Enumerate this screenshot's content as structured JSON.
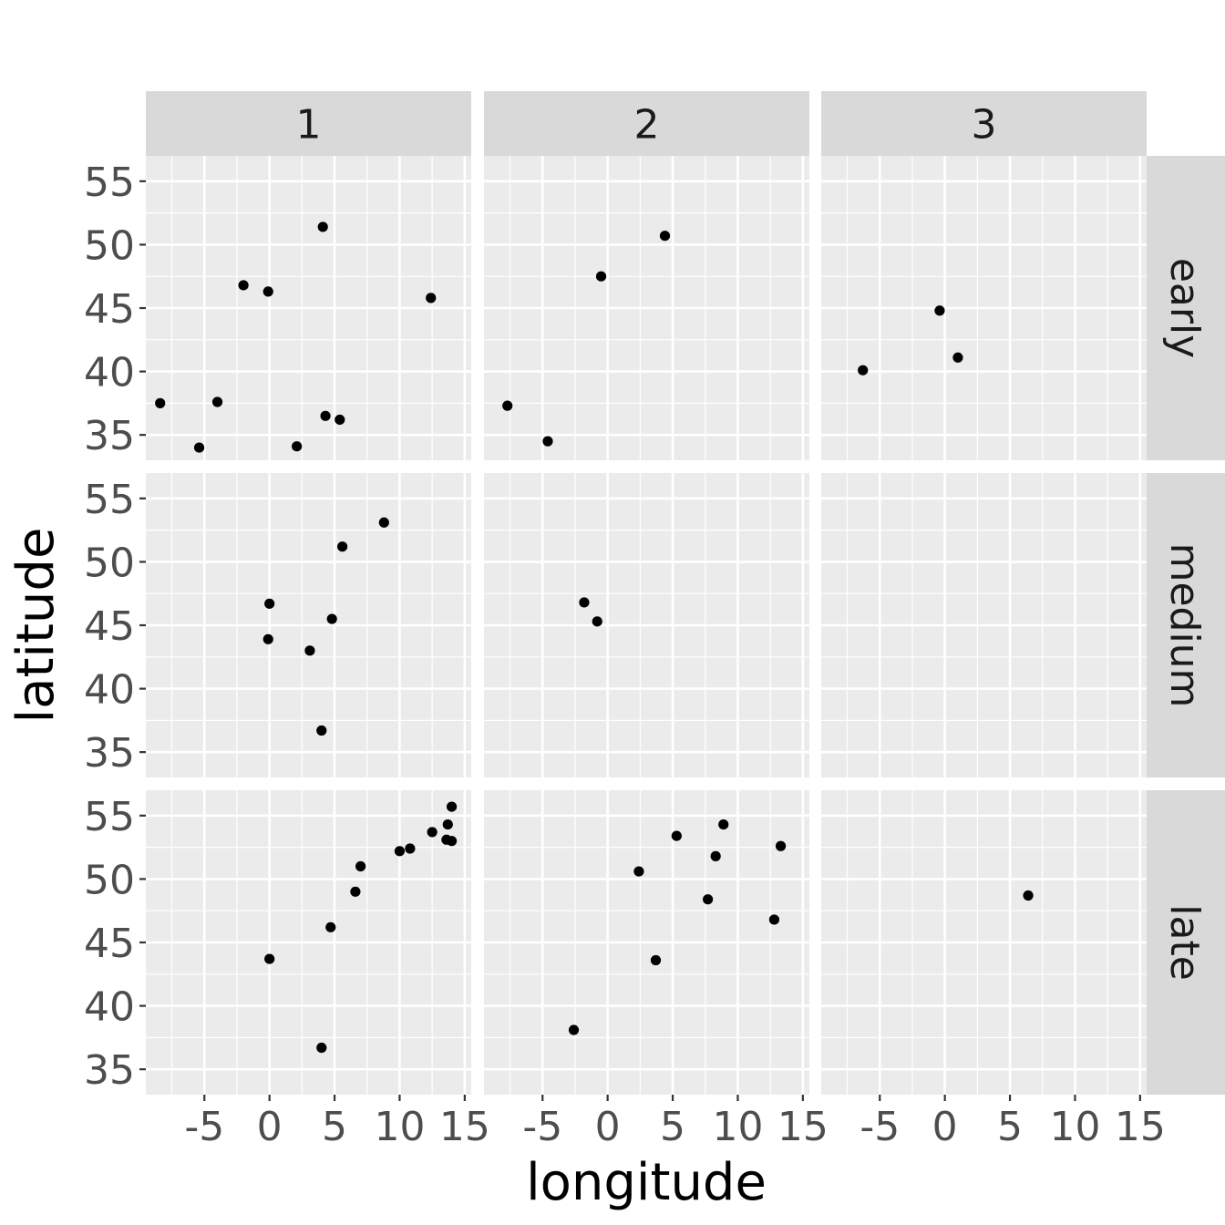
{
  "chart_data": {
    "type": "scatter",
    "xlabel": "longitude",
    "ylabel": "latitude",
    "xlim": [
      -9.5,
      15.5
    ],
    "ylim": [
      33,
      57
    ],
    "x_ticks": [
      -5,
      0,
      5,
      10,
      15
    ],
    "x_tick_labels": [
      "-5",
      "0",
      "5",
      "10",
      "15"
    ],
    "y_ticks": [
      35,
      40,
      45,
      50,
      55
    ],
    "y_tick_labels": [
      "35",
      "40",
      "45",
      "50",
      "55"
    ],
    "grid": true,
    "point_color": "#000000",
    "panel_background": "#ebebeb",
    "strip_background": "#d9d9d9",
    "column_facets": [
      "1",
      "2",
      "3"
    ],
    "row_facets": [
      "early",
      "medium",
      "late"
    ],
    "panels": [
      {
        "row": "early",
        "col": "1",
        "points": [
          [
            -8.4,
            37.5
          ],
          [
            -5.4,
            34.0
          ],
          [
            -4.0,
            37.6
          ],
          [
            -2.0,
            46.8
          ],
          [
            -0.1,
            46.3
          ],
          [
            2.1,
            34.1
          ],
          [
            4.1,
            51.4
          ],
          [
            4.3,
            36.5
          ],
          [
            5.4,
            36.2
          ],
          [
            12.4,
            45.8
          ]
        ]
      },
      {
        "row": "early",
        "col": "2",
        "points": [
          [
            -7.7,
            37.3
          ],
          [
            -4.6,
            34.5
          ],
          [
            -0.5,
            47.5
          ],
          [
            4.4,
            50.7
          ]
        ]
      },
      {
        "row": "early",
        "col": "3",
        "points": [
          [
            -6.3,
            40.1
          ],
          [
            -0.4,
            44.8
          ],
          [
            1.0,
            41.1
          ]
        ]
      },
      {
        "row": "medium",
        "col": "1",
        "points": [
          [
            0.0,
            46.7
          ],
          [
            -0.1,
            43.9
          ],
          [
            3.1,
            43.0
          ],
          [
            4.0,
            36.7
          ],
          [
            4.8,
            45.5
          ],
          [
            5.6,
            51.2
          ],
          [
            8.8,
            53.1
          ]
        ]
      },
      {
        "row": "medium",
        "col": "2",
        "points": [
          [
            -1.8,
            46.8
          ],
          [
            -0.8,
            45.3
          ]
        ]
      },
      {
        "row": "medium",
        "col": "3",
        "points": []
      },
      {
        "row": "late",
        "col": "1",
        "points": [
          [
            0.0,
            43.7
          ],
          [
            4.0,
            36.7
          ],
          [
            4.7,
            46.2
          ],
          [
            6.6,
            49.0
          ],
          [
            7.0,
            51.0
          ],
          [
            10.0,
            52.2
          ],
          [
            10.8,
            52.4
          ],
          [
            12.5,
            53.7
          ],
          [
            13.6,
            53.1
          ],
          [
            13.7,
            54.3
          ],
          [
            14.0,
            53.0
          ],
          [
            14.0,
            55.7
          ]
        ]
      },
      {
        "row": "late",
        "col": "2",
        "points": [
          [
            -2.6,
            38.1
          ],
          [
            2.4,
            50.6
          ],
          [
            3.7,
            43.6
          ],
          [
            5.3,
            53.4
          ],
          [
            7.7,
            48.4
          ],
          [
            8.3,
            51.8
          ],
          [
            8.9,
            54.3
          ],
          [
            12.8,
            46.8
          ],
          [
            13.3,
            52.6
          ]
        ]
      },
      {
        "row": "late",
        "col": "3",
        "points": [
          [
            6.4,
            48.7
          ]
        ]
      }
    ]
  }
}
